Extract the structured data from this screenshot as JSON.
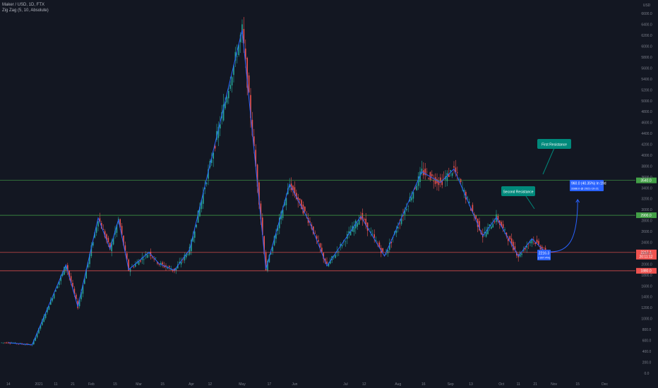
{
  "header": {
    "symbol_line": "Maker / USD, 1D, FTX",
    "indicator_line": "Zig Zag (5, 10, Absolute)"
  },
  "price_axis": {
    "currency": "USD",
    "ticks": [
      "6800.0",
      "6600.0",
      "6400.0",
      "6200.0",
      "6000.0",
      "5800.0",
      "5600.0",
      "5400.0",
      "5200.0",
      "5000.0",
      "4800.0",
      "4600.0",
      "4400.0",
      "4200.0",
      "4000.0",
      "3800.0",
      "3600.0",
      "3400.0",
      "3200.0",
      "3000.0",
      "2800.0",
      "2600.0",
      "2400.0",
      "2200.0",
      "2000.0",
      "1800.0",
      "1600.0",
      "1400.0",
      "1200.0",
      "1000.0",
      "800.0",
      "600.0",
      "400.0",
      "200.0",
      "0.0"
    ],
    "tick_values": [
      6800,
      6600,
      6400,
      6200,
      6000,
      5800,
      5600,
      5400,
      5200,
      5000,
      4800,
      4600,
      4400,
      4200,
      4000,
      3800,
      3600,
      3400,
      3200,
      3000,
      2800,
      2600,
      2400,
      2200,
      2000,
      1800,
      1600,
      1400,
      1200,
      1000,
      800,
      600,
      400,
      200,
      0
    ]
  },
  "time_axis": {
    "ticks": [
      "14",
      "2021",
      "11",
      "21",
      "Feb",
      "15",
      "Mar",
      "15",
      "Apr",
      "12",
      "May",
      "17",
      "Jun",
      "Jul",
      "12",
      "Aug",
      "16",
      "Sep",
      "13",
      "Oct",
      "11",
      "21",
      "Nov",
      "15",
      "Dec"
    ],
    "tick_days": [
      -18,
      0,
      10,
      20,
      31,
      45,
      59,
      73,
      90,
      101,
      120,
      136,
      151,
      181,
      192,
      212,
      227,
      243,
      255,
      273,
      283,
      293,
      304,
      318,
      334
    ]
  },
  "levels": [
    {
      "name": "first-resistance-line",
      "value": 3540,
      "label": "3540.0",
      "color": "#43a047"
    },
    {
      "name": "second-resistance-line",
      "value": 2900,
      "label": "2900.0",
      "color": "#43a047"
    },
    {
      "name": "current-price-line",
      "value": 2217,
      "label": "2217.1",
      "sublabel": "20:11:12",
      "color": "#ef5350"
    },
    {
      "name": "support-line",
      "value": 1880,
      "label": "1880.0",
      "color": "#ef5350"
    }
  ],
  "callouts": {
    "first_resistance": "First Resistance",
    "second_resistance": "Second Resistance",
    "zigzag_last_value": "2216.3",
    "zigzag_last_sub": "(-307.4%)",
    "projection_line1": "960.0 (40.35%) In 19d",
    "projection_line2": "3388.0 @ 2021-10-21"
  },
  "colors": {
    "background": "#131722",
    "up": "#26a69a",
    "down": "#ef5350",
    "zigzag": "#2962ff",
    "callout_teal": "#00897b",
    "callout_blue": "#2962ff"
  },
  "chart_data": {
    "type": "candlestick",
    "title": "Maker / USD, 1D, FTX",
    "ylim": [
      0,
      6800
    ],
    "x_unit": "days since 2021-01-01",
    "zigzag_pivots": [
      {
        "x": -18,
        "y": 560
      },
      {
        "x": -4,
        "y": 520
      },
      {
        "x": 16,
        "y": 1990
      },
      {
        "x": 23,
        "y": 1220
      },
      {
        "x": 35,
        "y": 2850
      },
      {
        "x": 42,
        "y": 2280
      },
      {
        "x": 47,
        "y": 2820
      },
      {
        "x": 53,
        "y": 1900
      },
      {
        "x": 65,
        "y": 2220
      },
      {
        "x": 71,
        "y": 2010
      },
      {
        "x": 80,
        "y": 1890
      },
      {
        "x": 89,
        "y": 2270
      },
      {
        "x": 120,
        "y": 6300
      },
      {
        "x": 134,
        "y": 1910
      },
      {
        "x": 148,
        "y": 3470
      },
      {
        "x": 160,
        "y": 2760
      },
      {
        "x": 170,
        "y": 1970
      },
      {
        "x": 190,
        "y": 2880
      },
      {
        "x": 204,
        "y": 2150
      },
      {
        "x": 226,
        "y": 3700
      },
      {
        "x": 237,
        "y": 3500
      },
      {
        "x": 245,
        "y": 3750
      },
      {
        "x": 262,
        "y": 2520
      },
      {
        "x": 270,
        "y": 2860
      },
      {
        "x": 283,
        "y": 2150
      },
      {
        "x": 291,
        "y": 2470
      },
      {
        "x": 299,
        "y": 2220
      }
    ],
    "projection": {
      "from": {
        "x": 299,
        "y": 2230
      },
      "to": {
        "x": 318,
        "y": 3188
      }
    }
  }
}
